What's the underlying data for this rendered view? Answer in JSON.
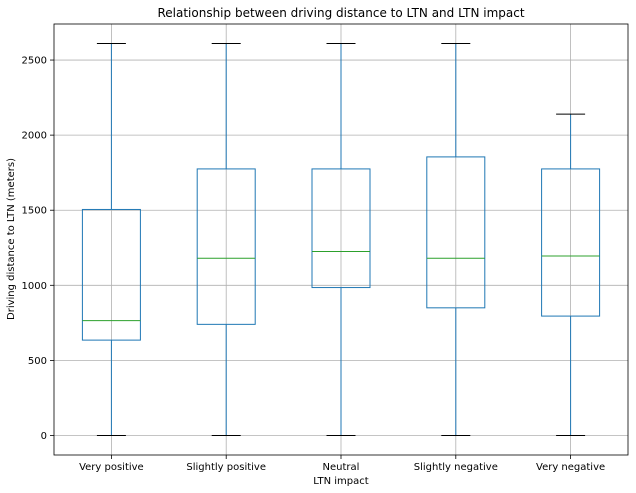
{
  "chart_data": {
    "type": "box",
    "title": "Relationship between driving distance to LTN and LTN impact",
    "xlabel": "LTN impact",
    "ylabel": "Driving distance to LTN (meters)",
    "categories": [
      "Very positive",
      "Slightly positive",
      "Neutral",
      "Slightly negative",
      "Very negative"
    ],
    "y_ticks": [
      0,
      500,
      1000,
      1500,
      2000,
      2500
    ],
    "ylim": [
      -130,
      2740
    ],
    "grid": true,
    "boxes": [
      {
        "category": "Very positive",
        "min": 0,
        "q1": 635,
        "median": 765,
        "q3": 1505,
        "max": 2610
      },
      {
        "category": "Slightly positive",
        "min": 0,
        "q1": 740,
        "median": 1180,
        "q3": 1775,
        "max": 2610
      },
      {
        "category": "Neutral",
        "min": 0,
        "q1": 985,
        "median": 1225,
        "q3": 1775,
        "max": 2610
      },
      {
        "category": "Slightly negative",
        "min": 0,
        "q1": 850,
        "median": 1180,
        "q3": 1855,
        "max": 2610
      },
      {
        "category": "Very negative",
        "min": 0,
        "q1": 795,
        "median": 1195,
        "q3": 1775,
        "max": 2140
      }
    ],
    "colors": {
      "box": "#1f77b4",
      "median": "#2ca02c",
      "whisker": "#1f77b4",
      "cap": "#000000",
      "grid": "#b0b0b0",
      "axis": "#000000"
    }
  }
}
